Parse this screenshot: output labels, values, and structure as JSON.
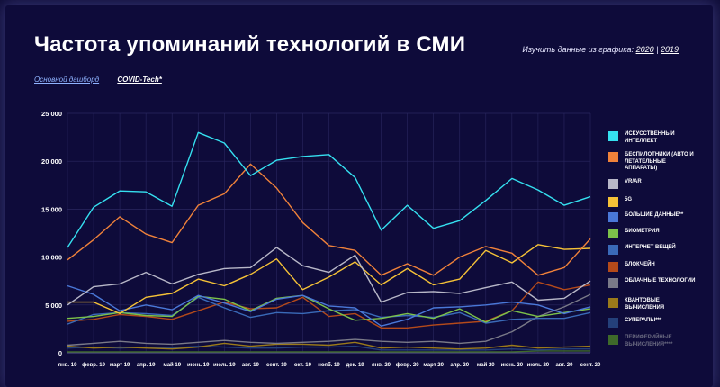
{
  "header": {
    "title": "Частота упоминаний технологий в СМИ",
    "explore_prefix": "Изучить данные из графика:",
    "year_links": [
      "2020",
      "2019"
    ],
    "separator": "|"
  },
  "tabs": [
    "Основной дашборд",
    "COVID-Tech*"
  ],
  "colors": {
    "background": "#0e0b3a",
    "grid": "#2a2760",
    "axis_text": "#ffffff"
  },
  "chart_data": {
    "type": "line",
    "categories": [
      "янв. 19",
      "февр. 19",
      "март 19",
      "апр. 19",
      "май 19",
      "июнь 19",
      "июль 19",
      "авг. 19",
      "сент. 19",
      "окт. 19",
      "нояб. 19",
      "дек. 19",
      "янв. 20",
      "февр. 20",
      "март 20",
      "апр. 20",
      "май 20",
      "июнь 20",
      "июль 20",
      "авг. 20",
      "сент. 20"
    ],
    "yticks": [
      "0",
      "5 000",
      "10 000",
      "15 000",
      "20 000",
      "25 000"
    ],
    "ylim": [
      0,
      25000
    ],
    "grid": true,
    "legend_position": "right",
    "series": [
      {
        "name": "Искусственный интеллект",
        "color": "#35e0f0",
        "values": [
          11000,
          15200,
          16900,
          16800,
          15300,
          23000,
          21900,
          18500,
          20100,
          20500,
          20700,
          18300,
          12800,
          15400,
          13000,
          13800,
          15900,
          18200,
          17000,
          15400,
          16300
        ]
      },
      {
        "name": "Беспилотники (авто и летательные аппараты)",
        "color": "#f0823a",
        "values": [
          9700,
          11800,
          14200,
          12400,
          11500,
          15400,
          16600,
          19700,
          17200,
          13600,
          11200,
          10700,
          8100,
          9300,
          8100,
          10000,
          11100,
          10400,
          8100,
          8900,
          11900
        ]
      },
      {
        "name": "VR/AR",
        "color": "#b8b8c8",
        "values": [
          5000,
          6900,
          7200,
          8400,
          7200,
          8200,
          8800,
          8900,
          11000,
          9100,
          8400,
          10200,
          5300,
          6300,
          6400,
          6200,
          6800,
          7400,
          5500,
          5700,
          7500
        ]
      },
      {
        "name": "5G",
        "color": "#f5c237",
        "values": [
          5300,
          5300,
          4100,
          5800,
          6200,
          7700,
          7000,
          8200,
          9800,
          6600,
          7900,
          9500,
          7100,
          8800,
          7100,
          7700,
          10700,
          9400,
          11300,
          10800,
          10900
        ]
      },
      {
        "name": "Большие данные**",
        "color": "#4a78d8",
        "values": [
          7000,
          6100,
          4400,
          5000,
          4500,
          6000,
          5200,
          4300,
          5600,
          6000,
          4900,
          4700,
          2800,
          3500,
          4700,
          4800,
          5000,
          5300,
          5000,
          4100,
          4800
        ]
      },
      {
        "name": "Биометрия",
        "color": "#7cc24a",
        "values": [
          3600,
          3800,
          4200,
          3900,
          3800,
          5900,
          5600,
          4400,
          5700,
          6000,
          4600,
          3400,
          3600,
          4100,
          3600,
          4600,
          3200,
          4400,
          3800,
          4200,
          4600
        ]
      },
      {
        "name": "Интернет вещей",
        "color": "#3a6ab8",
        "values": [
          3000,
          4000,
          4200,
          4100,
          3900,
          5800,
          4700,
          3700,
          4200,
          4100,
          4400,
          4500,
          3700,
          3900,
          3700,
          4200,
          3100,
          3500,
          3600,
          3600,
          4200
        ]
      },
      {
        "name": "Блокчейн",
        "color": "#b44a1a",
        "values": [
          3300,
          3500,
          4000,
          3800,
          3500,
          4400,
          5300,
          4600,
          4700,
          5800,
          3800,
          4100,
          2600,
          2600,
          2900,
          3100,
          3300,
          4400,
          7400,
          6600,
          7100
        ]
      },
      {
        "name": "Облачные технологии",
        "color": "#7a7a88",
        "values": [
          800,
          1000,
          1200,
          1000,
          900,
          1100,
          1300,
          1100,
          1000,
          1100,
          1200,
          1400,
          1200,
          1100,
          1200,
          1000,
          1200,
          2200,
          3800,
          4800,
          6100
        ]
      },
      {
        "name": "Квантовые вычисления",
        "color": "#9a7a1a",
        "values": [
          700,
          500,
          600,
          500,
          400,
          600,
          1000,
          700,
          900,
          900,
          800,
          1100,
          500,
          600,
          500,
          400,
          500,
          800,
          500,
          600,
          700
        ]
      },
      {
        "name": "Суперапы***",
        "color": "#24407a",
        "values": [
          500,
          600,
          500,
          600,
          500,
          700,
          600,
          500,
          500,
          600,
          600,
          700,
          300,
          300,
          300,
          300,
          300,
          400,
          300,
          400,
          400
        ]
      },
      {
        "name": "Периферийные вычисления****",
        "color": "#3e6a2a",
        "values": [
          100,
          100,
          100,
          100,
          100,
          100,
          100,
          100,
          100,
          100,
          100,
          100,
          100,
          100,
          100,
          100,
          100,
          100,
          200,
          200,
          200
        ]
      }
    ]
  }
}
